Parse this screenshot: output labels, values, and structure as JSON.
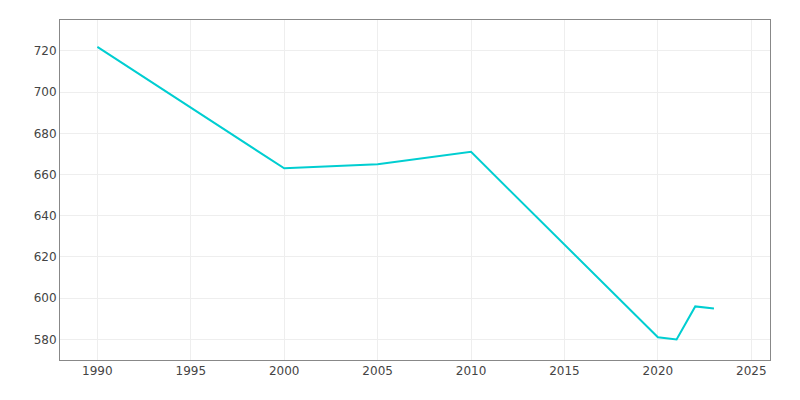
{
  "chart_data": {
    "type": "line",
    "x": [
      1990,
      2000,
      2005,
      2010,
      2020,
      2021,
      2022,
      2023
    ],
    "values": [
      722,
      663,
      665,
      671,
      581,
      580,
      596,
      595
    ],
    "color": "#00CED1",
    "xlim": [
      1988,
      2026
    ],
    "xticks": [
      1990,
      1995,
      2000,
      2005,
      2010,
      2015,
      2020,
      2025
    ],
    "ylim": [
      570,
      735
    ],
    "yticks": [
      580,
      600,
      620,
      640,
      660,
      680,
      700,
      720
    ],
    "grid": true
  }
}
